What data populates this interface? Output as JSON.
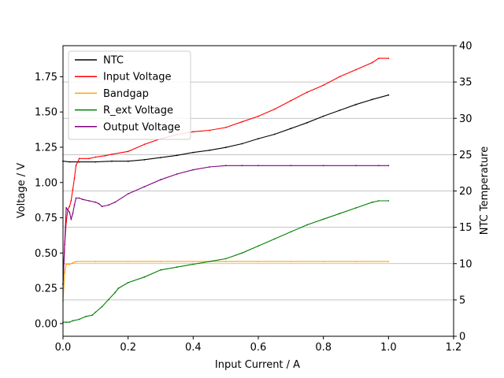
{
  "chart_data": {
    "type": "line",
    "xlabel": "Input Current / A",
    "ylabel": "Voltage / V",
    "y2label": "NTC Temperature",
    "xlim": [
      0,
      1.2
    ],
    "ylim": [
      -0.09,
      1.97
    ],
    "y2lim": [
      0,
      40
    ],
    "x_ticks": [
      "0.0",
      "0.2",
      "0.4",
      "0.6",
      "0.8",
      "1.0",
      "1.2"
    ],
    "y_ticks": [
      "0.00",
      "0.25",
      "0.50",
      "0.75",
      "1.00",
      "1.25",
      "1.50",
      "1.75"
    ],
    "y2_ticks": [
      "0",
      "5",
      "10",
      "15",
      "20",
      "25",
      "30",
      "35",
      "40"
    ],
    "grid": "horizontal on secondary axis",
    "legend_position": "upper-left",
    "series": [
      {
        "name": "NTC",
        "axis": "right",
        "color": "#000000",
        "x": [
          0.0,
          0.02,
          0.05,
          0.1,
          0.15,
          0.2,
          0.25,
          0.3,
          0.35,
          0.4,
          0.45,
          0.5,
          0.55,
          0.6,
          0.65,
          0.7,
          0.75,
          0.8,
          0.85,
          0.9,
          0.95,
          1.0
        ],
        "values": [
          24.1,
          24.0,
          24.0,
          24.0,
          24.1,
          24.1,
          24.3,
          24.6,
          24.9,
          25.3,
          25.6,
          26.0,
          26.5,
          27.2,
          27.8,
          28.6,
          29.4,
          30.3,
          31.1,
          31.9,
          32.6,
          33.2
        ]
      },
      {
        "name": "Input Voltage",
        "axis": "left",
        "color": "#ff0000",
        "x": [
          0.0,
          0.005,
          0.01,
          0.015,
          0.02,
          0.025,
          0.03,
          0.035,
          0.04,
          0.05,
          0.08,
          0.1,
          0.13,
          0.15,
          0.2,
          0.25,
          0.3,
          0.35,
          0.4,
          0.45,
          0.5,
          0.55,
          0.6,
          0.65,
          0.7,
          0.75,
          0.8,
          0.85,
          0.9,
          0.95,
          0.97,
          1.0
        ],
        "values": [
          0.28,
          0.56,
          0.72,
          0.81,
          0.83,
          0.87,
          0.95,
          1.03,
          1.12,
          1.17,
          1.17,
          1.18,
          1.19,
          1.2,
          1.22,
          1.27,
          1.31,
          1.34,
          1.36,
          1.37,
          1.39,
          1.43,
          1.47,
          1.52,
          1.58,
          1.64,
          1.69,
          1.75,
          1.8,
          1.85,
          1.88,
          1.88
        ]
      },
      {
        "name": "Bandgap",
        "axis": "left",
        "color": "#ffa500",
        "x": [
          0.0,
          0.005,
          0.01,
          0.02,
          0.03,
          0.04,
          0.1,
          0.2,
          0.3,
          0.4,
          0.5,
          0.6,
          0.7,
          0.8,
          0.9,
          1.0
        ],
        "values": [
          0.16,
          0.36,
          0.42,
          0.42,
          0.43,
          0.44,
          0.44,
          0.44,
          0.44,
          0.44,
          0.44,
          0.44,
          0.44,
          0.44,
          0.44,
          0.44
        ]
      },
      {
        "name": "R_ext Voltage",
        "axis": "left",
        "color": "#008000",
        "x": [
          0.0,
          0.01,
          0.02,
          0.03,
          0.05,
          0.07,
          0.09,
          0.1,
          0.12,
          0.14,
          0.16,
          0.17,
          0.2,
          0.25,
          0.3,
          0.35,
          0.4,
          0.45,
          0.5,
          0.55,
          0.6,
          0.65,
          0.7,
          0.75,
          0.8,
          0.85,
          0.9,
          0.95,
          0.97,
          1.0
        ],
        "values": [
          0.01,
          0.01,
          0.01,
          0.02,
          0.03,
          0.05,
          0.06,
          0.08,
          0.12,
          0.17,
          0.22,
          0.25,
          0.29,
          0.33,
          0.38,
          0.4,
          0.42,
          0.44,
          0.46,
          0.5,
          0.55,
          0.6,
          0.65,
          0.7,
          0.74,
          0.78,
          0.82,
          0.86,
          0.87,
          0.87
        ]
      },
      {
        "name": "Output Voltage",
        "axis": "left",
        "color": "#800080",
        "x": [
          0.0,
          0.01,
          0.02,
          0.025,
          0.03,
          0.035,
          0.04,
          0.05,
          0.06,
          0.08,
          0.1,
          0.11,
          0.12,
          0.14,
          0.16,
          0.2,
          0.25,
          0.3,
          0.35,
          0.4,
          0.45,
          0.5,
          0.55,
          0.6,
          0.7,
          0.8,
          0.9,
          0.97,
          1.0
        ],
        "values": [
          0.28,
          0.82,
          0.79,
          0.74,
          0.78,
          0.84,
          0.89,
          0.89,
          0.88,
          0.87,
          0.86,
          0.85,
          0.83,
          0.84,
          0.86,
          0.92,
          0.97,
          1.02,
          1.06,
          1.09,
          1.11,
          1.12,
          1.12,
          1.12,
          1.12,
          1.12,
          1.12,
          1.12,
          1.12
        ]
      }
    ]
  }
}
